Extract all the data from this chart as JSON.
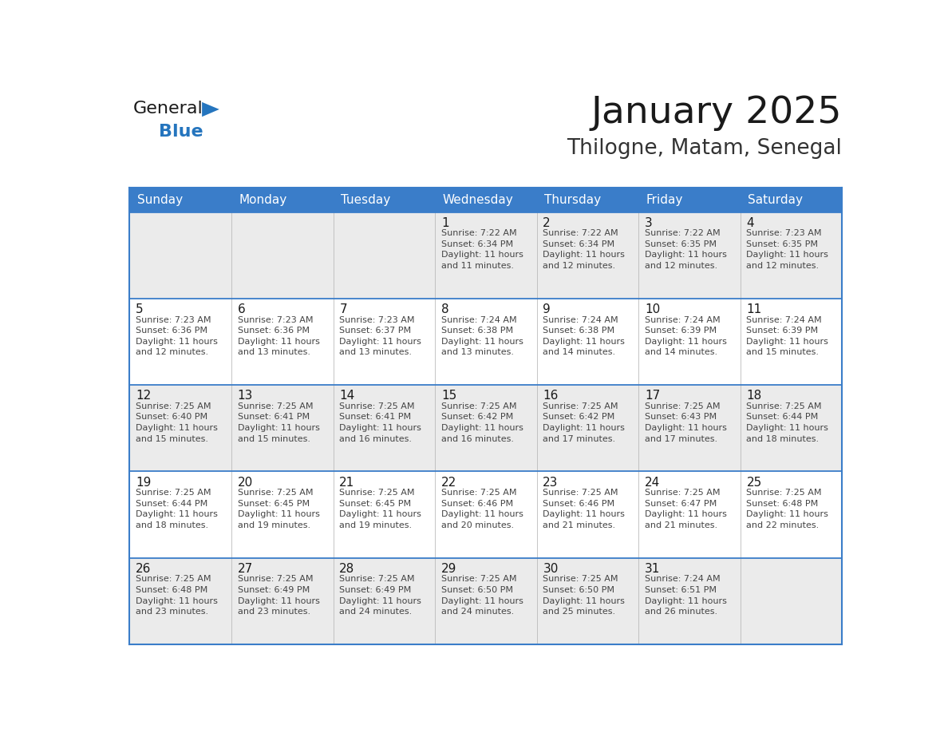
{
  "title": "January 2025",
  "subtitle": "Thilogne, Matam, Senegal",
  "header_bg_color": "#3A7DC9",
  "header_text_color": "#FFFFFF",
  "border_color": "#3A7DC9",
  "title_color": "#1A1A1A",
  "subtitle_color": "#333333",
  "day_num_color": "#1A1A1A",
  "cell_text_color": "#444444",
  "logo_text_color": "#1A1A1A",
  "logo_blue_color": "#2575BE",
  "logo_triangle_color": "#2575BE",
  "row_bg_colors": [
    "#EBEBEB",
    "#FFFFFF",
    "#EBEBEB",
    "#FFFFFF",
    "#EBEBEB"
  ],
  "days_of_week": [
    "Sunday",
    "Monday",
    "Tuesday",
    "Wednesday",
    "Thursday",
    "Friday",
    "Saturday"
  ],
  "weeks": [
    [
      {
        "day": "",
        "info": ""
      },
      {
        "day": "",
        "info": ""
      },
      {
        "day": "",
        "info": ""
      },
      {
        "day": "1",
        "info": "Sunrise: 7:22 AM\nSunset: 6:34 PM\nDaylight: 11 hours\nand 11 minutes."
      },
      {
        "day": "2",
        "info": "Sunrise: 7:22 AM\nSunset: 6:34 PM\nDaylight: 11 hours\nand 12 minutes."
      },
      {
        "day": "3",
        "info": "Sunrise: 7:22 AM\nSunset: 6:35 PM\nDaylight: 11 hours\nand 12 minutes."
      },
      {
        "day": "4",
        "info": "Sunrise: 7:23 AM\nSunset: 6:35 PM\nDaylight: 11 hours\nand 12 minutes."
      }
    ],
    [
      {
        "day": "5",
        "info": "Sunrise: 7:23 AM\nSunset: 6:36 PM\nDaylight: 11 hours\nand 12 minutes."
      },
      {
        "day": "6",
        "info": "Sunrise: 7:23 AM\nSunset: 6:36 PM\nDaylight: 11 hours\nand 13 minutes."
      },
      {
        "day": "7",
        "info": "Sunrise: 7:23 AM\nSunset: 6:37 PM\nDaylight: 11 hours\nand 13 minutes."
      },
      {
        "day": "8",
        "info": "Sunrise: 7:24 AM\nSunset: 6:38 PM\nDaylight: 11 hours\nand 13 minutes."
      },
      {
        "day": "9",
        "info": "Sunrise: 7:24 AM\nSunset: 6:38 PM\nDaylight: 11 hours\nand 14 minutes."
      },
      {
        "day": "10",
        "info": "Sunrise: 7:24 AM\nSunset: 6:39 PM\nDaylight: 11 hours\nand 14 minutes."
      },
      {
        "day": "11",
        "info": "Sunrise: 7:24 AM\nSunset: 6:39 PM\nDaylight: 11 hours\nand 15 minutes."
      }
    ],
    [
      {
        "day": "12",
        "info": "Sunrise: 7:25 AM\nSunset: 6:40 PM\nDaylight: 11 hours\nand 15 minutes."
      },
      {
        "day": "13",
        "info": "Sunrise: 7:25 AM\nSunset: 6:41 PM\nDaylight: 11 hours\nand 15 minutes."
      },
      {
        "day": "14",
        "info": "Sunrise: 7:25 AM\nSunset: 6:41 PM\nDaylight: 11 hours\nand 16 minutes."
      },
      {
        "day": "15",
        "info": "Sunrise: 7:25 AM\nSunset: 6:42 PM\nDaylight: 11 hours\nand 16 minutes."
      },
      {
        "day": "16",
        "info": "Sunrise: 7:25 AM\nSunset: 6:42 PM\nDaylight: 11 hours\nand 17 minutes."
      },
      {
        "day": "17",
        "info": "Sunrise: 7:25 AM\nSunset: 6:43 PM\nDaylight: 11 hours\nand 17 minutes."
      },
      {
        "day": "18",
        "info": "Sunrise: 7:25 AM\nSunset: 6:44 PM\nDaylight: 11 hours\nand 18 minutes."
      }
    ],
    [
      {
        "day": "19",
        "info": "Sunrise: 7:25 AM\nSunset: 6:44 PM\nDaylight: 11 hours\nand 18 minutes."
      },
      {
        "day": "20",
        "info": "Sunrise: 7:25 AM\nSunset: 6:45 PM\nDaylight: 11 hours\nand 19 minutes."
      },
      {
        "day": "21",
        "info": "Sunrise: 7:25 AM\nSunset: 6:45 PM\nDaylight: 11 hours\nand 19 minutes."
      },
      {
        "day": "22",
        "info": "Sunrise: 7:25 AM\nSunset: 6:46 PM\nDaylight: 11 hours\nand 20 minutes."
      },
      {
        "day": "23",
        "info": "Sunrise: 7:25 AM\nSunset: 6:46 PM\nDaylight: 11 hours\nand 21 minutes."
      },
      {
        "day": "24",
        "info": "Sunrise: 7:25 AM\nSunset: 6:47 PM\nDaylight: 11 hours\nand 21 minutes."
      },
      {
        "day": "25",
        "info": "Sunrise: 7:25 AM\nSunset: 6:48 PM\nDaylight: 11 hours\nand 22 minutes."
      }
    ],
    [
      {
        "day": "26",
        "info": "Sunrise: 7:25 AM\nSunset: 6:48 PM\nDaylight: 11 hours\nand 23 minutes."
      },
      {
        "day": "27",
        "info": "Sunrise: 7:25 AM\nSunset: 6:49 PM\nDaylight: 11 hours\nand 23 minutes."
      },
      {
        "day": "28",
        "info": "Sunrise: 7:25 AM\nSunset: 6:49 PM\nDaylight: 11 hours\nand 24 minutes."
      },
      {
        "day": "29",
        "info": "Sunrise: 7:25 AM\nSunset: 6:50 PM\nDaylight: 11 hours\nand 24 minutes."
      },
      {
        "day": "30",
        "info": "Sunrise: 7:25 AM\nSunset: 6:50 PM\nDaylight: 11 hours\nand 25 minutes."
      },
      {
        "day": "31",
        "info": "Sunrise: 7:24 AM\nSunset: 6:51 PM\nDaylight: 11 hours\nand 26 minutes."
      },
      {
        "day": "",
        "info": ""
      }
    ]
  ]
}
